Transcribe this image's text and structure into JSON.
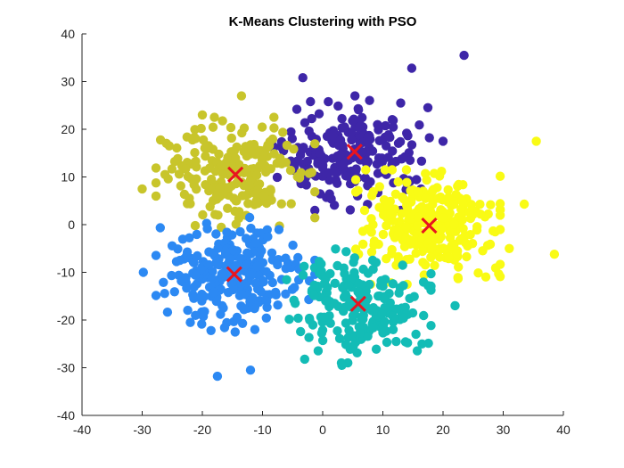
{
  "chart_data": {
    "type": "scatter",
    "title": "K-Means Clustering with PSO",
    "xlabel": "",
    "ylabel": "",
    "xlim": [
      -40,
      40
    ],
    "ylim": [
      -40,
      40
    ],
    "x_ticks": [
      -40,
      -30,
      -20,
      -10,
      0,
      10,
      20,
      30,
      40
    ],
    "y_ticks": [
      -40,
      -30,
      -20,
      -10,
      0,
      10,
      20,
      30,
      40
    ],
    "grid": false,
    "legend": "none",
    "clusters": [
      {
        "color": "#3e26a8",
        "center": [
          5,
          15
        ],
        "spread": [
          5.5,
          5.0
        ],
        "count": 210,
        "outliers": [
          [
            -3.3,
            30.8
          ],
          [
            14.8,
            32.8
          ],
          [
            23.5,
            35.5
          ],
          [
            20,
            17.5
          ],
          [
            -6.5,
            15.5
          ]
        ]
      },
      {
        "color": "#f9fb15",
        "center": [
          17.5,
          -0.5
        ],
        "spread": [
          5.0,
          5.0
        ],
        "count": 290,
        "outliers": [
          [
            35.5,
            17.5
          ],
          [
            38.5,
            -6.2
          ],
          [
            33.5,
            4.3
          ],
          [
            31,
            -5
          ]
        ]
      },
      {
        "color": "#c8c52b",
        "center": [
          -14.5,
          10.5
        ],
        "spread": [
          5.5,
          5.0
        ],
        "count": 210,
        "outliers": [
          [
            -30,
            7.5
          ],
          [
            -13.5,
            27
          ],
          [
            -20,
            23
          ],
          [
            -25.5,
            16.5
          ]
        ]
      },
      {
        "color": "#2c89f3",
        "center": [
          -14.5,
          -10.5
        ],
        "spread": [
          5.5,
          5.0
        ],
        "count": 260,
        "outliers": [
          [
            -17.5,
            -31.8
          ],
          [
            -12,
            -30.5
          ],
          [
            -29.8,
            -10
          ],
          [
            -22,
            -20.5
          ]
        ]
      },
      {
        "color": "#13bcb6",
        "center": [
          6,
          -17
        ],
        "spread": [
          5.0,
          5.0
        ],
        "count": 210,
        "outliers": [
          [
            22,
            -17
          ],
          [
            16.5,
            -25
          ],
          [
            3.2,
            -29.5
          ],
          [
            -3,
            -28.2
          ]
        ]
      }
    ],
    "centroids": [
      {
        "x": 5.3,
        "y": 15.3
      },
      {
        "x": 17.7,
        "y": -0.2
      },
      {
        "x": -14.5,
        "y": 10.5
      },
      {
        "x": -14.7,
        "y": -10.4
      },
      {
        "x": 5.9,
        "y": -16.6
      }
    ],
    "centroid_color": "#e8151f",
    "centroid_marker": "x"
  }
}
